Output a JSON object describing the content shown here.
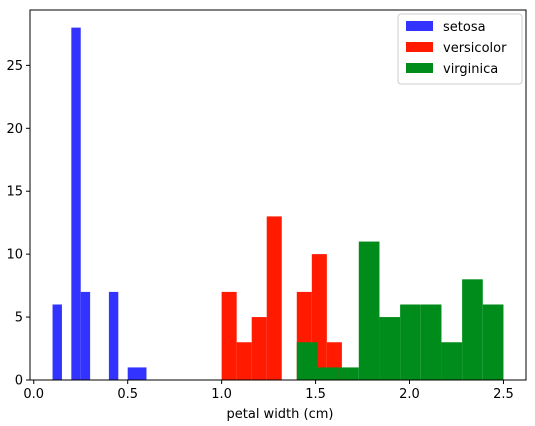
{
  "chart_data": {
    "type": "bar",
    "title": "",
    "xlabel": "petal width (cm)",
    "ylabel": "",
    "xlim": [
      -0.02,
      2.62
    ],
    "ylim": [
      0,
      29.4
    ],
    "xticks": [
      0.0,
      0.5,
      1.0,
      1.5,
      2.0,
      2.5
    ],
    "xtick_labels": [
      "0.0",
      "0.5",
      "1.0",
      "1.5",
      "2.0",
      "2.5"
    ],
    "yticks": [
      0,
      5,
      10,
      15,
      20,
      25
    ],
    "ytick_labels": [
      "0",
      "5",
      "10",
      "15",
      "20",
      "25"
    ],
    "grid": false,
    "legend_position": "top-right",
    "series": [
      {
        "name": "setosa",
        "color": "#3333ff",
        "bins": [
          {
            "x0": 0.1,
            "x1": 0.15,
            "count": 6
          },
          {
            "x0": 0.2,
            "x1": 0.25,
            "count": 28
          },
          {
            "x0": 0.25,
            "x1": 0.3,
            "count": 7
          },
          {
            "x0": 0.4,
            "x1": 0.45,
            "count": 7
          },
          {
            "x0": 0.5,
            "x1": 0.6,
            "count": 1
          }
        ]
      },
      {
        "name": "versicolor",
        "color": "#ff1a00",
        "bins": [
          {
            "x0": 1.0,
            "x1": 1.08,
            "count": 7
          },
          {
            "x0": 1.08,
            "x1": 1.16,
            "count": 3
          },
          {
            "x0": 1.16,
            "x1": 1.24,
            "count": 5
          },
          {
            "x0": 1.24,
            "x1": 1.32,
            "count": 13
          },
          {
            "x0": 1.4,
            "x1": 1.48,
            "count": 7
          },
          {
            "x0": 1.48,
            "x1": 1.56,
            "count": 10
          },
          {
            "x0": 1.56,
            "x1": 1.64,
            "count": 3
          }
        ]
      },
      {
        "name": "virginica",
        "color": "#008c1a",
        "bins": [
          {
            "x0": 1.4,
            "x1": 1.51,
            "count": 3
          },
          {
            "x0": 1.51,
            "x1": 1.62,
            "count": 1
          },
          {
            "x0": 1.62,
            "x1": 1.73,
            "count": 1
          },
          {
            "x0": 1.73,
            "x1": 1.84,
            "count": 11
          },
          {
            "x0": 1.84,
            "x1": 1.95,
            "count": 5
          },
          {
            "x0": 1.95,
            "x1": 2.06,
            "count": 6
          },
          {
            "x0": 2.06,
            "x1": 2.17,
            "count": 6
          },
          {
            "x0": 2.17,
            "x1": 2.28,
            "count": 3
          },
          {
            "x0": 2.28,
            "x1": 2.39,
            "count": 8
          },
          {
            "x0": 2.39,
            "x1": 2.5,
            "count": 6
          }
        ]
      }
    ]
  }
}
